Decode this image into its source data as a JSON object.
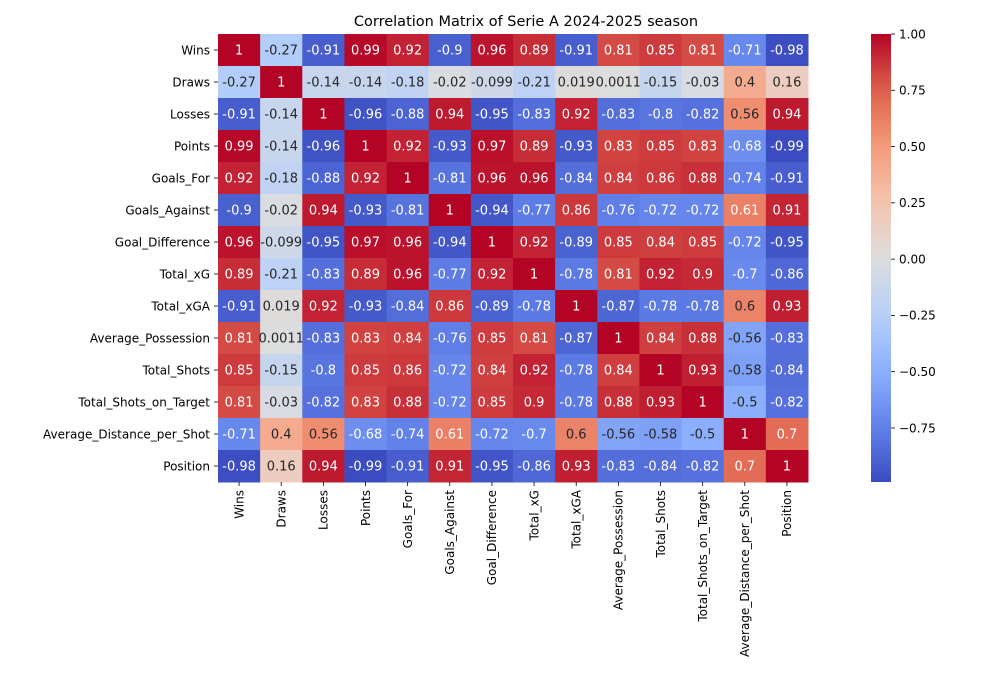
{
  "chart_data": {
    "type": "heatmap",
    "title": "Correlation Matrix of Serie A 2024-2025 season",
    "labels": [
      "Wins",
      "Draws",
      "Losses",
      "Points",
      "Goals_For",
      "Goals_Against",
      "Goal_Difference",
      "Total_xG",
      "Total_xGA",
      "Average_Possession",
      "Total_Shots",
      "Total_Shots_on_Target",
      "Average_Distance_per_Shot",
      "Position"
    ],
    "matrix": [
      [
        1,
        -0.27,
        -0.91,
        0.99,
        0.92,
        -0.9,
        0.96,
        0.89,
        -0.91,
        0.81,
        0.85,
        0.81,
        -0.71,
        -0.98
      ],
      [
        -0.27,
        1,
        -0.14,
        -0.14,
        -0.18,
        -0.02,
        -0.099,
        -0.21,
        0.019,
        0.0011,
        -0.15,
        -0.03,
        0.4,
        0.16
      ],
      [
        -0.91,
        -0.14,
        1,
        -0.96,
        -0.88,
        0.94,
        -0.95,
        -0.83,
        0.92,
        -0.83,
        -0.8,
        -0.82,
        0.56,
        0.94
      ],
      [
        0.99,
        -0.14,
        -0.96,
        1,
        0.92,
        -0.93,
        0.97,
        0.89,
        -0.93,
        0.83,
        0.85,
        0.83,
        -0.68,
        -0.99
      ],
      [
        0.92,
        -0.18,
        -0.88,
        0.92,
        1,
        -0.81,
        0.96,
        0.96,
        -0.84,
        0.84,
        0.86,
        0.88,
        -0.74,
        -0.91
      ],
      [
        -0.9,
        -0.02,
        0.94,
        -0.93,
        -0.81,
        1,
        -0.94,
        -0.77,
        0.86,
        -0.76,
        -0.72,
        -0.72,
        0.61,
        0.91
      ],
      [
        0.96,
        -0.099,
        -0.95,
        0.97,
        0.96,
        -0.94,
        1,
        0.92,
        -0.89,
        0.85,
        0.84,
        0.85,
        -0.72,
        -0.95
      ],
      [
        0.89,
        -0.21,
        -0.83,
        0.89,
        0.96,
        -0.77,
        0.92,
        1,
        -0.78,
        0.81,
        0.92,
        0.9,
        -0.7,
        -0.86
      ],
      [
        -0.91,
        0.019,
        0.92,
        -0.93,
        -0.84,
        0.86,
        -0.89,
        -0.78,
        1,
        -0.87,
        -0.78,
        -0.78,
        0.6,
        0.93
      ],
      [
        0.81,
        0.0011,
        -0.83,
        0.83,
        0.84,
        -0.76,
        0.85,
        0.81,
        -0.87,
        1,
        0.84,
        0.88,
        -0.56,
        -0.83
      ],
      [
        0.85,
        -0.15,
        -0.8,
        0.85,
        0.86,
        -0.72,
        0.84,
        0.92,
        -0.78,
        0.84,
        1,
        0.93,
        -0.58,
        -0.84
      ],
      [
        0.81,
        -0.03,
        -0.82,
        0.83,
        0.88,
        -0.72,
        0.85,
        0.9,
        -0.78,
        0.88,
        0.93,
        1,
        -0.5,
        -0.82
      ],
      [
        -0.71,
        0.4,
        0.56,
        -0.68,
        -0.74,
        0.61,
        -0.72,
        -0.7,
        0.6,
        -0.56,
        -0.58,
        -0.5,
        1,
        0.7
      ],
      [
        -0.98,
        0.16,
        0.94,
        -0.99,
        -0.91,
        0.91,
        -0.95,
        -0.86,
        0.93,
        -0.83,
        -0.84,
        -0.82,
        0.7,
        1
      ]
    ],
    "cell_labels": [
      [
        "1",
        "-0.27",
        "-0.91",
        "0.99",
        "0.92",
        "-0.9",
        "0.96",
        "0.89",
        "-0.91",
        "0.81",
        "0.85",
        "0.81",
        "-0.71",
        "-0.98"
      ],
      [
        "-0.27",
        "1",
        "-0.14",
        "-0.14",
        "-0.18",
        "-0.02",
        "-0.099",
        "-0.21",
        "0.019",
        "0.0011",
        "-0.15",
        "-0.03",
        "0.4",
        "0.16"
      ],
      [
        "-0.91",
        "-0.14",
        "1",
        "-0.96",
        "-0.88",
        "0.94",
        "-0.95",
        "-0.83",
        "0.92",
        "-0.83",
        "-0.8",
        "-0.82",
        "0.56",
        "0.94"
      ],
      [
        "0.99",
        "-0.14",
        "-0.96",
        "1",
        "0.92",
        "-0.93",
        "0.97",
        "0.89",
        "-0.93",
        "0.83",
        "0.85",
        "0.83",
        "-0.68",
        "-0.99"
      ],
      [
        "0.92",
        "-0.18",
        "-0.88",
        "0.92",
        "1",
        "-0.81",
        "0.96",
        "0.96",
        "-0.84",
        "0.84",
        "0.86",
        "0.88",
        "-0.74",
        "-0.91"
      ],
      [
        "-0.9",
        "-0.02",
        "0.94",
        "-0.93",
        "-0.81",
        "1",
        "-0.94",
        "-0.77",
        "0.86",
        "-0.76",
        "-0.72",
        "-0.72",
        "0.61",
        "0.91"
      ],
      [
        "0.96",
        "-0.099",
        "-0.95",
        "0.97",
        "0.96",
        "-0.94",
        "1",
        "0.92",
        "-0.89",
        "0.85",
        "0.84",
        "0.85",
        "-0.72",
        "-0.95"
      ],
      [
        "0.89",
        "-0.21",
        "-0.83",
        "0.89",
        "0.96",
        "-0.77",
        "0.92",
        "1",
        "-0.78",
        "0.81",
        "0.92",
        "0.9",
        "-0.7",
        "-0.86"
      ],
      [
        "-0.91",
        "0.019",
        "0.92",
        "-0.93",
        "-0.84",
        "0.86",
        "-0.89",
        "-0.78",
        "1",
        "-0.87",
        "-0.78",
        "-0.78",
        "0.6",
        "0.93"
      ],
      [
        "0.81",
        "0.0011",
        "-0.83",
        "0.83",
        "0.84",
        "-0.76",
        "0.85",
        "0.81",
        "-0.87",
        "1",
        "0.84",
        "0.88",
        "-0.56",
        "-0.83"
      ],
      [
        "0.85",
        "-0.15",
        "-0.8",
        "0.85",
        "0.86",
        "-0.72",
        "0.84",
        "0.92",
        "-0.78",
        "0.84",
        "1",
        "0.93",
        "-0.58",
        "-0.84"
      ],
      [
        "0.81",
        "-0.03",
        "-0.82",
        "0.83",
        "0.88",
        "-0.72",
        "0.85",
        "0.9",
        "-0.78",
        "0.88",
        "0.93",
        "1",
        "-0.5",
        "-0.82"
      ],
      [
        "-0.71",
        "0.4",
        "0.56",
        "-0.68",
        "-0.74",
        "0.61",
        "-0.72",
        "-0.7",
        "0.6",
        "-0.56",
        "-0.58",
        "-0.5",
        "1",
        "0.7"
      ],
      [
        "-0.98",
        "0.16",
        "0.94",
        "-0.99",
        "-0.91",
        "0.91",
        "-0.95",
        "-0.86",
        "0.93",
        "-0.83",
        "-0.84",
        "-0.82",
        "0.7",
        "1"
      ]
    ],
    "colormap": "coolwarm",
    "vmin": -0.99,
    "vmax": 1.0,
    "colorbar_ticks": [
      1.0,
      0.75,
      0.5,
      0.25,
      0.0,
      -0.25,
      -0.5,
      -0.75
    ],
    "colorbar_tick_labels": [
      "1.00",
      "0.75",
      "0.50",
      "0.25",
      "0.00",
      "−0.25",
      "−0.50",
      "−0.75"
    ],
    "colorbar_placement": "right",
    "grid": false
  }
}
